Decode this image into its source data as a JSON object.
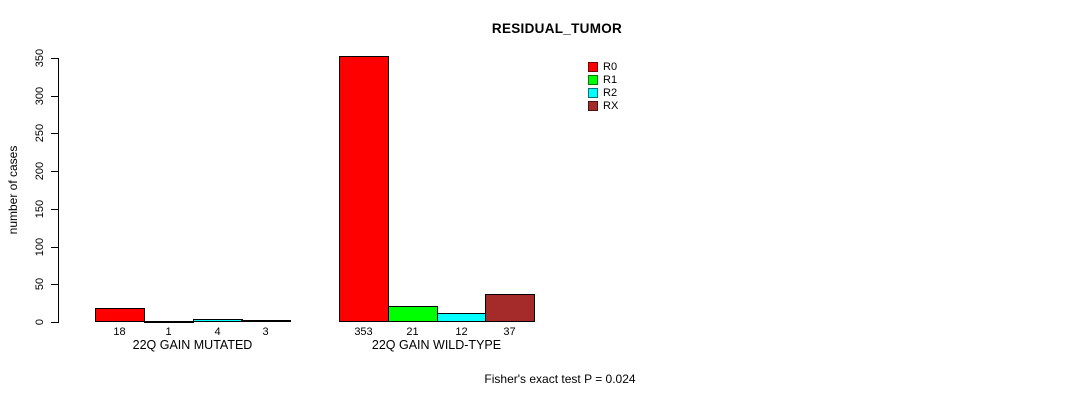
{
  "chart_data": {
    "type": "bar",
    "title": "RESIDUAL_TUMOR",
    "xlabel": "",
    "ylabel": "number of cases",
    "ylim": [
      0,
      350
    ],
    "yticks": [
      0,
      50,
      100,
      150,
      200,
      250,
      300,
      350
    ],
    "grid": false,
    "legend_position": "top-right",
    "groups": [
      "22Q GAIN MUTATED",
      "22Q GAIN WILD-TYPE"
    ],
    "series": [
      {
        "name": "R0",
        "color": "#FF0000",
        "values": [
          18,
          353
        ]
      },
      {
        "name": "R1",
        "color": "#00FF00",
        "values": [
          1,
          21
        ]
      },
      {
        "name": "R2",
        "color": "#00FFFF",
        "values": [
          4,
          12
        ]
      },
      {
        "name": "RX",
        "color": "#A52A2A",
        "values": [
          3,
          37
        ]
      }
    ],
    "value_labels_shown": true,
    "annotation": "Fisher's exact test P = 0.024"
  }
}
